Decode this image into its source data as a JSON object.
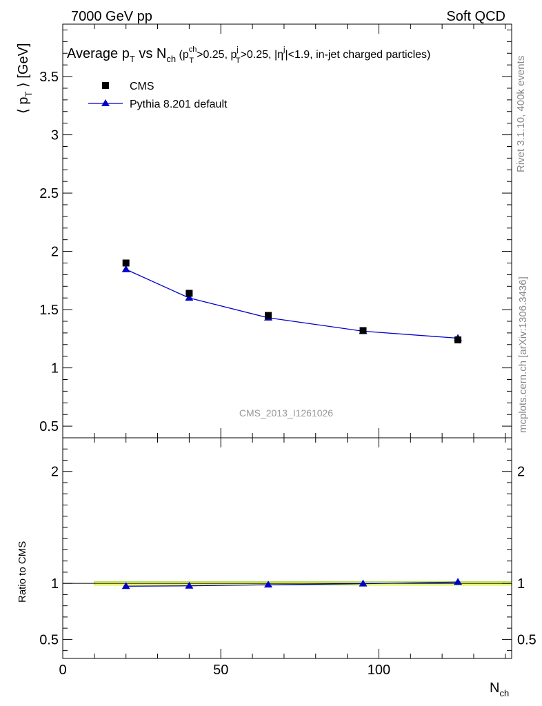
{
  "header": {
    "left": "7000 GeV pp",
    "right": "Soft QCD"
  },
  "side_labels": {
    "top": "Rivet 3.1.10,  400k events",
    "bottom": "mcplots.cern.ch [arXiv:1306.3436]"
  },
  "colors": {
    "data": "#000000",
    "mc": "#0000cc",
    "band": "#ffff66",
    "band_edge": "#99dd33"
  },
  "chart_data": [
    {
      "type": "scatter",
      "title": "Average p_T vs N_ch (p_T^ch>0.25, p_T^j>0.25, |η^j|<1.9, in-jet charged particles)",
      "title_parts": {
        "lead": "Average p",
        "sub_t": "T",
        "vs": " vs N",
        "sub_ch": "ch",
        "cut_open": " (p",
        "cut1_sup": "ch",
        "cut1_sub": "T",
        "cut1_val": ">0.25, p",
        "cut2_sup": "j",
        "cut2_sub": "T",
        "cut2_val": ">0.25, |η",
        "cut3_sup": "j",
        "cut3_val": "|<1.9, in-jet charged particles)"
      },
      "ylabel": "⟨ p_T ⟩ [GeV]",
      "ylabel_parts": {
        "open": "⟨ p",
        "sub": "T",
        "close": " ⟩ [GeV]"
      },
      "xlim": [
        0,
        142
      ],
      "ylim": [
        0.4,
        3.95
      ],
      "y_ticks": [
        0.5,
        1,
        1.5,
        2,
        2.5,
        3,
        3.5
      ],
      "y_tick_labels": [
        "0.5",
        "1",
        "1.5",
        "2",
        "2.5",
        "3",
        "3.5"
      ],
      "legend_position": "top-left",
      "watermark": "CMS_2013_I1261026",
      "series": [
        {
          "name": "CMS",
          "marker": "square",
          "x": [
            20,
            40,
            65,
            95,
            125
          ],
          "y": [
            1.9,
            1.64,
            1.45,
            1.32,
            1.24
          ]
        },
        {
          "name": "Pythia 8.201 default",
          "marker": "triangle",
          "x": [
            20,
            40,
            65,
            95,
            125
          ],
          "y": [
            1.845,
            1.6,
            1.43,
            1.315,
            1.255
          ]
        }
      ]
    },
    {
      "type": "line",
      "ylabel": "Ratio to CMS",
      "xlabel": "N_ch",
      "xlabel_parts": {
        "main": "N",
        "sub": "ch"
      },
      "xlim": [
        0,
        142
      ],
      "ylim": [
        0.33,
        2.3
      ],
      "x_ticks": [
        0,
        50,
        100
      ],
      "x_tick_labels": [
        "0",
        "50",
        "100"
      ],
      "y_ticks": [
        0.5,
        1,
        2
      ],
      "y_tick_labels": [
        "0.5",
        "1",
        "2"
      ],
      "band": {
        "x": [
          10,
          142
        ],
        "y": [
          0.985,
          1.015
        ]
      },
      "series": [
        {
          "name": "Pythia 8.201 default",
          "marker": "triangle",
          "x": [
            20,
            40,
            65,
            95,
            125
          ],
          "y": [
            0.975,
            0.978,
            0.988,
            0.997,
            1.012
          ]
        }
      ]
    }
  ]
}
